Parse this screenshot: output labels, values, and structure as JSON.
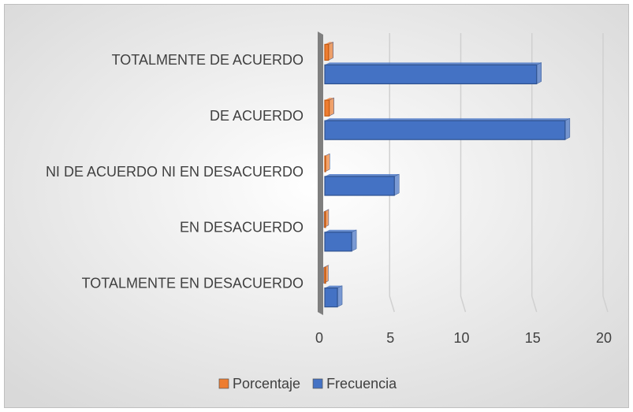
{
  "chart_data": {
    "type": "bar",
    "orientation": "horizontal",
    "categories": [
      "TOTALMENTE DE ACUERDO",
      "DE ACUERDO",
      "NI DE ACUERDO NI EN DESACUERDO",
      "EN DESACUERDO",
      "TOTALMENTE EN DESACUERDO"
    ],
    "series": [
      {
        "name": "Porcentaje",
        "color": "#ed7d31",
        "values": [
          0.375,
          0.425,
          0.125,
          0.05,
          0.025
        ]
      },
      {
        "name": "Frecuencia",
        "color": "#4472c4",
        "values": [
          15,
          17,
          5,
          2,
          1
        ]
      }
    ],
    "xlim": [
      0,
      20
    ],
    "xticks": [
      0,
      5,
      10,
      15,
      20
    ],
    "grid": true,
    "legend": "bottom"
  }
}
